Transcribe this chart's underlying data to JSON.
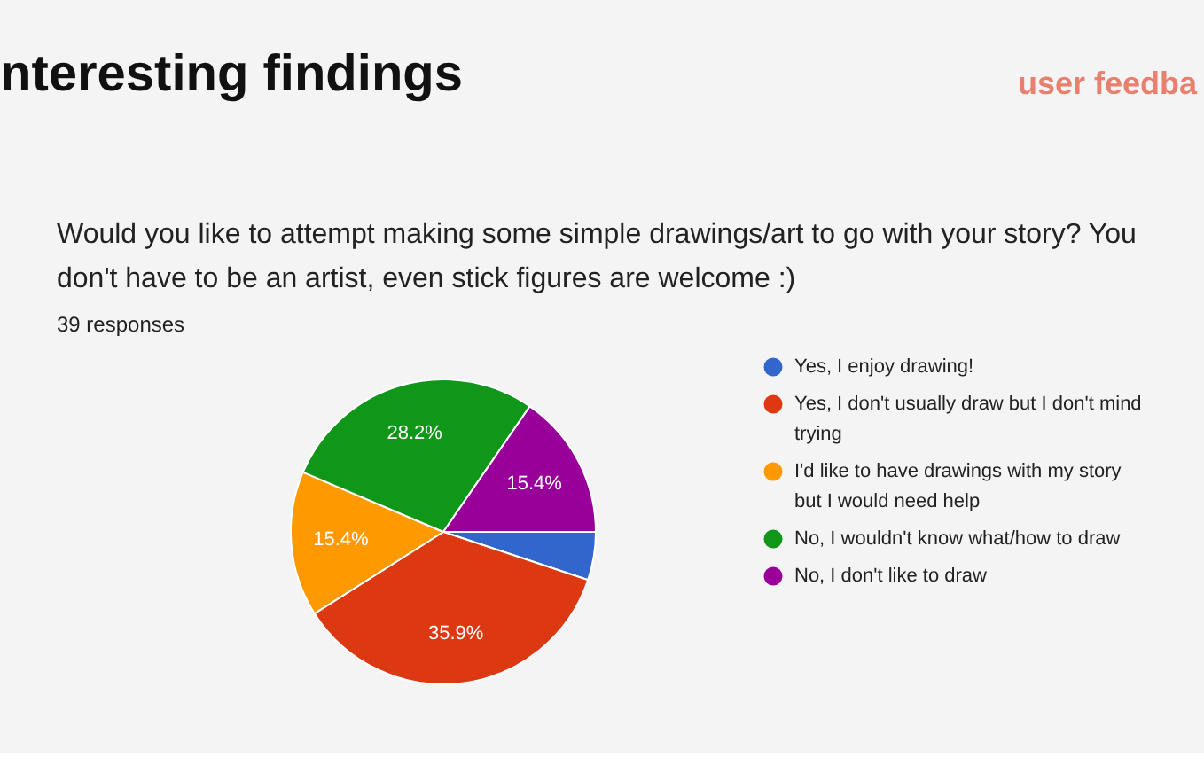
{
  "chart_data": {
    "type": "pie",
    "title": "nteresting findings",
    "subtitle": "Would you like to attempt making some simple drawings/art to go with your story? You don't have to be an artist, even stick figures are welcome :)",
    "annotations": [
      "39 responses",
      "user feedba"
    ],
    "categories": [
      "Yes, I enjoy drawing!",
      "Yes, I don't usually draw but I don't mind trying",
      "I'd like to have drawings with my story but I would need help",
      "No, I wouldn't know what/how to draw",
      "No, I don't like to draw"
    ],
    "values": [
      5.1,
      35.9,
      15.4,
      28.2,
      15.4
    ],
    "colors": [
      "#3366cc",
      "#dc3912",
      "#ff9900",
      "#109618",
      "#990099"
    ],
    "value_labels": [
      null,
      "35.9%",
      "15.4%",
      "28.2%",
      "15.4%"
    ],
    "legend": "right"
  }
}
